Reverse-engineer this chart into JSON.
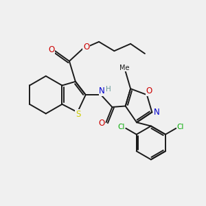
{
  "bg_color": "#f0f0f0",
  "bond_color": "#1a1a1a",
  "S_color": "#cccc00",
  "N_color": "#0000cc",
  "O_color": "#cc0000",
  "N_iso_color": "#0000cc",
  "O_iso_color": "#cc0000",
  "Cl_color": "#00aa00",
  "H_color": "#669999",
  "lw": 1.4,
  "xlim": [
    0,
    10
  ],
  "ylim": [
    0,
    10
  ]
}
